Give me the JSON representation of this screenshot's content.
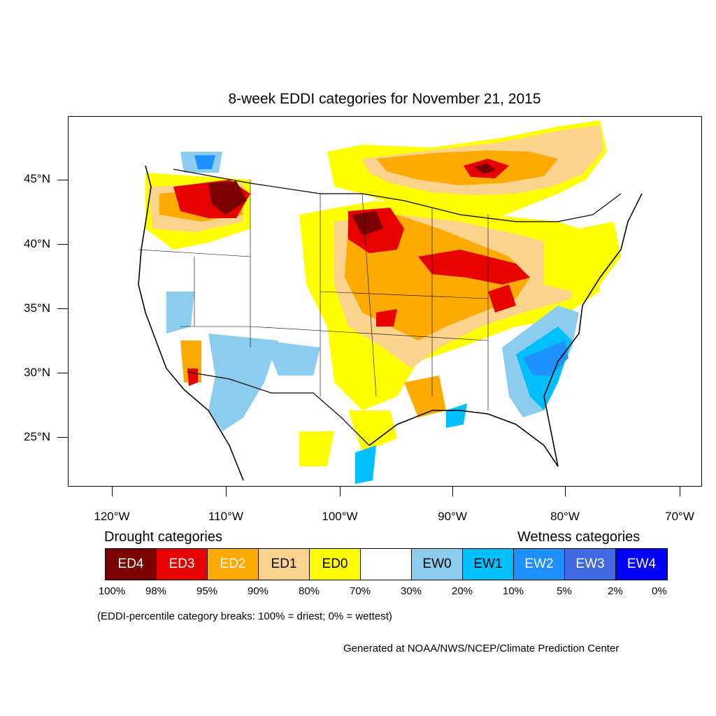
{
  "title": "8-week EDDI categories for November 21, 2015",
  "lat_labels": [
    "45°N",
    "40°N",
    "35°N",
    "30°N",
    "25°N"
  ],
  "lon_labels": [
    "120°W",
    "110°W",
    "100°W",
    "90°W",
    "80°W",
    "70°W"
  ],
  "legend": {
    "drought_heading": "Drought categories",
    "wetness_heading": "Wetness categories",
    "categories": [
      {
        "label": "ED4",
        "color": "#7a0000",
        "text_color": "#ffffff"
      },
      {
        "label": "ED3",
        "color": "#e60000",
        "text_color": "#ffffff"
      },
      {
        "label": "ED2",
        "color": "#ffaa00",
        "text_color": "#ffffff"
      },
      {
        "label": "ED1",
        "color": "#fcd38d",
        "text_color": "#000000"
      },
      {
        "label": "ED0",
        "color": "#ffff00",
        "text_color": "#000000"
      },
      {
        "label": "",
        "color": "#ffffff",
        "text_color": "#000000"
      },
      {
        "label": "EW0",
        "color": "#8ccdef",
        "text_color": "#000000"
      },
      {
        "label": "EW1",
        "color": "#00bfff",
        "text_color": "#000000"
      },
      {
        "label": "EW2",
        "color": "#1e90ff",
        "text_color": "#ffffff"
      },
      {
        "label": "EW3",
        "color": "#4169e1",
        "text_color": "#ffffff"
      },
      {
        "label": "EW4",
        "color": "#0000ff",
        "text_color": "#ffffff"
      }
    ],
    "percentiles": [
      "100%",
      "98%",
      "95%",
      "90%",
      "80%",
      "70%",
      "30%",
      "20%",
      "10%",
      "5%",
      "2%",
      "0%"
    ]
  },
  "note": "(EDDI-percentile category breaks: 100% = driest; 0% = wettest)",
  "credit": "Generated at NOAA/NWS/NCEP/Climate Prediction Center"
}
